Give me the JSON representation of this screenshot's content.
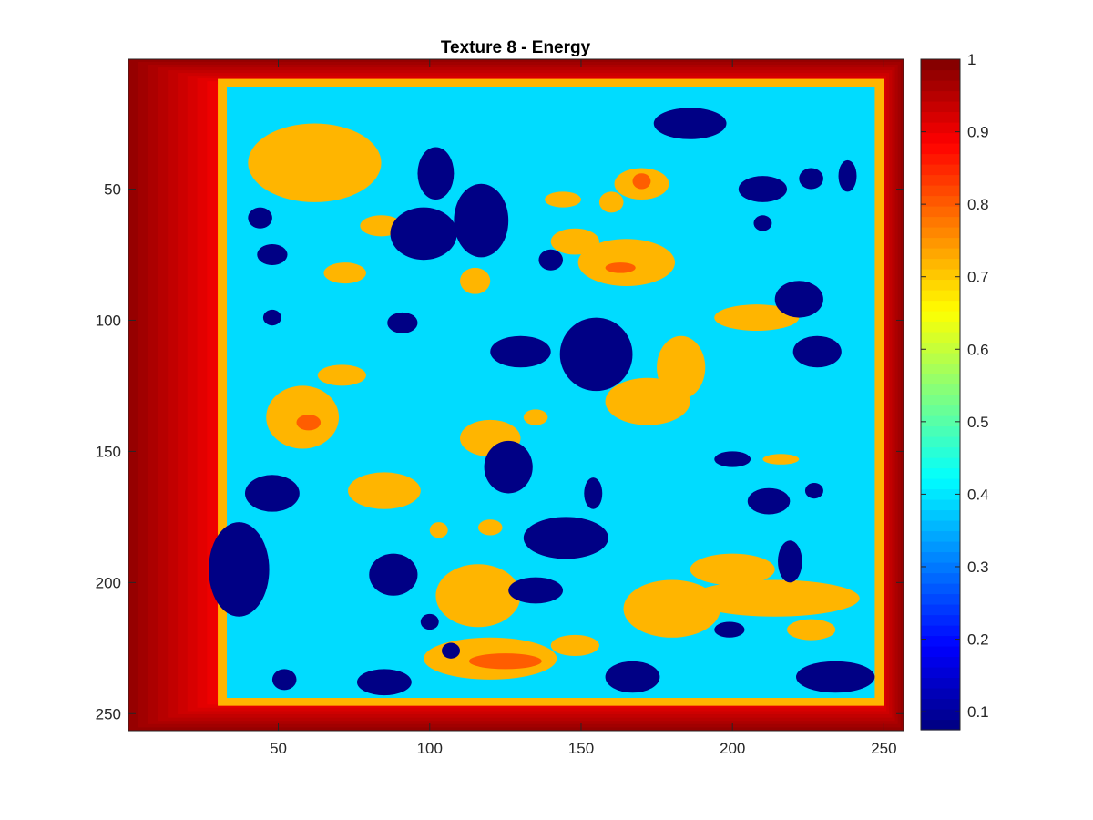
{
  "chart_data": {
    "type": "heatmap",
    "title": "Texture 8 - Energy",
    "xlabel": "",
    "ylabel": "",
    "xlim": [
      0.5,
      256.5
    ],
    "ylim": [
      0.5,
      256.5
    ],
    "y_direction": "reversed",
    "x_ticks": [
      50,
      100,
      150,
      200,
      250
    ],
    "y_ticks": [
      50,
      100,
      150,
      200,
      250
    ],
    "colorbar": {
      "colormap": "jet",
      "limits": [
        0.075,
        1.0
      ],
      "ticks": [
        0.1,
        0.2,
        0.3,
        0.4,
        0.5,
        0.6,
        0.7,
        0.8,
        0.9,
        1
      ]
    },
    "grid": false,
    "levels": {
      "background": 0.39,
      "dark_blobs": 0.08,
      "orange_patches": 0.72,
      "hot_spots": 0.8,
      "border_outer": 0.98,
      "border_inner": 0.88
    },
    "border": {
      "outer_edge_value": 0.98,
      "inner_plateau_value": 0.72,
      "inner_region_cols": [
        33,
        247
      ],
      "inner_region_rows": [
        11,
        244
      ]
    },
    "dark_blobs": [
      {
        "cx": 186,
        "cy": 25,
        "rx": 12,
        "ry": 6
      },
      {
        "cx": 98,
        "cy": 67,
        "rx": 11,
        "ry": 10
      },
      {
        "cx": 102,
        "cy": 44,
        "rx": 6,
        "ry": 10
      },
      {
        "cx": 117,
        "cy": 62,
        "rx": 9,
        "ry": 14
      },
      {
        "cx": 140,
        "cy": 77,
        "rx": 4,
        "ry": 4
      },
      {
        "cx": 48,
        "cy": 75,
        "rx": 5,
        "ry": 4
      },
      {
        "cx": 44,
        "cy": 61,
        "rx": 4,
        "ry": 4
      },
      {
        "cx": 210,
        "cy": 50,
        "rx": 8,
        "ry": 5
      },
      {
        "cx": 226,
        "cy": 46,
        "rx": 4,
        "ry": 4
      },
      {
        "cx": 210,
        "cy": 63,
        "rx": 3,
        "ry": 3
      },
      {
        "cx": 222,
        "cy": 92,
        "rx": 8,
        "ry": 7
      },
      {
        "cx": 155,
        "cy": 113,
        "rx": 12,
        "ry": 14
      },
      {
        "cx": 130,
        "cy": 112,
        "rx": 10,
        "ry": 6
      },
      {
        "cx": 228,
        "cy": 112,
        "rx": 8,
        "ry": 6
      },
      {
        "cx": 91,
        "cy": 101,
        "rx": 5,
        "ry": 4
      },
      {
        "cx": 48,
        "cy": 99,
        "rx": 3,
        "ry": 3
      },
      {
        "cx": 126,
        "cy": 156,
        "rx": 8,
        "ry": 10
      },
      {
        "cx": 154,
        "cy": 166,
        "rx": 3,
        "ry": 6
      },
      {
        "cx": 212,
        "cy": 169,
        "rx": 7,
        "ry": 5
      },
      {
        "cx": 48,
        "cy": 166,
        "rx": 9,
        "ry": 7
      },
      {
        "cx": 37,
        "cy": 195,
        "rx": 10,
        "ry": 18
      },
      {
        "cx": 88,
        "cy": 197,
        "rx": 8,
        "ry": 8
      },
      {
        "cx": 145,
        "cy": 183,
        "rx": 14,
        "ry": 8
      },
      {
        "cx": 135,
        "cy": 203,
        "rx": 9,
        "ry": 5
      },
      {
        "cx": 219,
        "cy": 192,
        "rx": 4,
        "ry": 8
      },
      {
        "cx": 200,
        "cy": 153,
        "rx": 6,
        "ry": 3
      },
      {
        "cx": 227,
        "cy": 165,
        "rx": 3,
        "ry": 3
      },
      {
        "cx": 238,
        "cy": 45,
        "rx": 3,
        "ry": 6
      },
      {
        "cx": 167,
        "cy": 236,
        "rx": 9,
        "ry": 6
      },
      {
        "cx": 85,
        "cy": 238,
        "rx": 9,
        "ry": 5
      },
      {
        "cx": 234,
        "cy": 236,
        "rx": 13,
        "ry": 6
      },
      {
        "cx": 52,
        "cy": 237,
        "rx": 4,
        "ry": 4
      },
      {
        "cx": 100,
        "cy": 215,
        "rx": 3,
        "ry": 3
      },
      {
        "cx": 107,
        "cy": 226,
        "rx": 3,
        "ry": 3
      },
      {
        "cx": 199,
        "cy": 218,
        "rx": 5,
        "ry": 3
      }
    ],
    "orange_patches": [
      {
        "cx": 62,
        "cy": 40,
        "rx": 22,
        "ry": 15
      },
      {
        "cx": 170,
        "cy": 48,
        "rx": 9,
        "ry": 6
      },
      {
        "cx": 165,
        "cy": 78,
        "rx": 16,
        "ry": 9
      },
      {
        "cx": 148,
        "cy": 70,
        "rx": 8,
        "ry": 5
      },
      {
        "cx": 160,
        "cy": 55,
        "rx": 4,
        "ry": 4
      },
      {
        "cx": 144,
        "cy": 54,
        "rx": 6,
        "ry": 3
      },
      {
        "cx": 72,
        "cy": 82,
        "rx": 7,
        "ry": 4
      },
      {
        "cx": 115,
        "cy": 85,
        "rx": 5,
        "ry": 5
      },
      {
        "cx": 84,
        "cy": 64,
        "rx": 7,
        "ry": 4
      },
      {
        "cx": 172,
        "cy": 131,
        "rx": 14,
        "ry": 9
      },
      {
        "cx": 183,
        "cy": 118,
        "rx": 8,
        "ry": 12
      },
      {
        "cx": 208,
        "cy": 99,
        "rx": 14,
        "ry": 5
      },
      {
        "cx": 58,
        "cy": 137,
        "rx": 12,
        "ry": 12
      },
      {
        "cx": 71,
        "cy": 121,
        "rx": 8,
        "ry": 4
      },
      {
        "cx": 120,
        "cy": 145,
        "rx": 10,
        "ry": 7
      },
      {
        "cx": 85,
        "cy": 165,
        "rx": 12,
        "ry": 7
      },
      {
        "cx": 116,
        "cy": 205,
        "rx": 14,
        "ry": 12
      },
      {
        "cx": 120,
        "cy": 229,
        "rx": 22,
        "ry": 8
      },
      {
        "cx": 180,
        "cy": 210,
        "rx": 16,
        "ry": 11
      },
      {
        "cx": 214,
        "cy": 206,
        "rx": 28,
        "ry": 7
      },
      {
        "cx": 200,
        "cy": 195,
        "rx": 14,
        "ry": 6
      },
      {
        "cx": 226,
        "cy": 218,
        "rx": 8,
        "ry": 4
      },
      {
        "cx": 148,
        "cy": 224,
        "rx": 8,
        "ry": 4
      },
      {
        "cx": 216,
        "cy": 153,
        "rx": 6,
        "ry": 2
      },
      {
        "cx": 135,
        "cy": 137,
        "rx": 4,
        "ry": 3
      },
      {
        "cx": 120,
        "cy": 179,
        "rx": 4,
        "ry": 3
      },
      {
        "cx": 103,
        "cy": 180,
        "rx": 3,
        "ry": 3
      }
    ],
    "hot_spots": [
      {
        "cx": 170,
        "cy": 47,
        "rx": 3,
        "ry": 3
      },
      {
        "cx": 60,
        "cy": 139,
        "rx": 4,
        "ry": 3
      },
      {
        "cx": 125,
        "cy": 230,
        "rx": 12,
        "ry": 3
      },
      {
        "cx": 163,
        "cy": 80,
        "rx": 5,
        "ry": 2
      }
    ]
  }
}
